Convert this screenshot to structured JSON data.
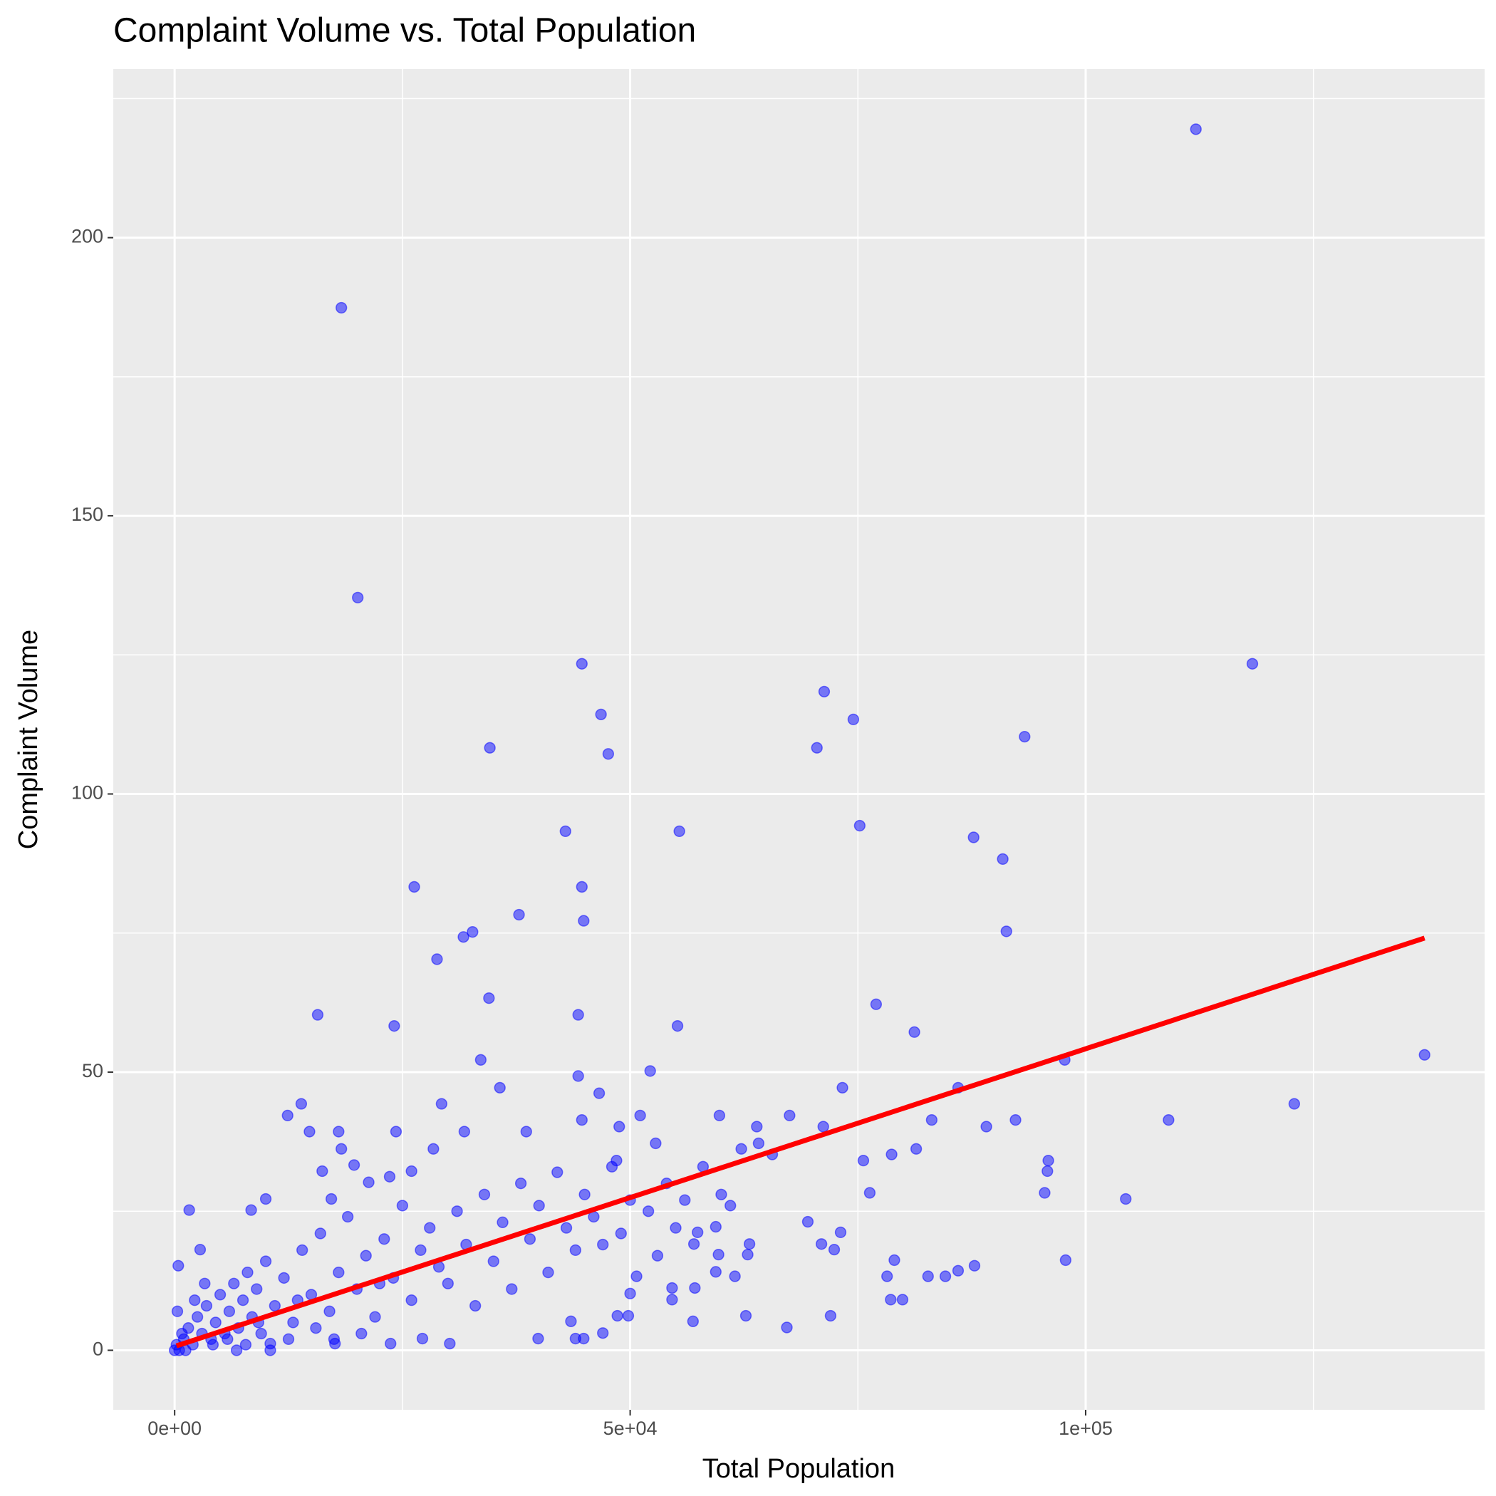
{
  "chart_data": {
    "type": "scatter",
    "title": "Complaint Volume vs. Total Population",
    "x_label": "Total Population",
    "y_label": "Complaint Volume",
    "color": "#0000ff",
    "opacity": 0.5,
    "x": [
      112100,
      18300,
      20100,
      44700,
      118300,
      71300,
      74500,
      46800,
      93300,
      34600,
      70500,
      47600,
      75200,
      42900,
      55400,
      87700,
      90900,
      26300,
      44700,
      37800,
      44900,
      32700,
      31700,
      91300,
      28800,
      34500,
      77000,
      15700,
      44300,
      24100,
      55200,
      81200,
      33600,
      97700,
      137200,
      52200,
      44300,
      86000,
      73300,
      46600,
      35700,
      13900,
      29300,
      122900,
      12400,
      51100,
      59800,
      67500,
      92300,
      83100,
      109100,
      44700,
      89100,
      71200,
      63900,
      48800,
      24300,
      14800,
      18000,
      31800,
      38600,
      64100,
      52800,
      81400,
      18300,
      28400,
      62200,
      95900,
      75600,
      48500,
      78700,
      65600,
      95800,
      16200,
      19700,
      104400,
      95500,
      76300,
      97800,
      79000,
      78200,
      82700,
      84600,
      86000,
      87800,
      78600,
      79900,
      72000,
      67200,
      62700,
      56900,
      69500,
      73100,
      72400,
      71000,
      63100,
      62900,
      59400,
      57400,
      57000,
      59700,
      61500,
      59400,
      54600,
      57100,
      54600,
      50700,
      50000,
      48600,
      49800,
      47000,
      44900,
      44000,
      39900,
      43500,
      30200,
      27200,
      23700,
      17600,
      10500,
      1600,
      2800,
      400,
      8400,
      10000,
      17200,
      21300,
      23600,
      26000,
      1000,
      1500,
      2000,
      2500,
      3000,
      3500,
      4000,
      4500,
      5000,
      5500,
      6000,
      6500,
      7000,
      7500,
      8000,
      8500,
      9000,
      9500,
      10000,
      11000,
      12000,
      13000,
      14000,
      15000,
      16000,
      17000,
      18000,
      19000,
      20000,
      21000,
      22000,
      23000,
      24000,
      25000,
      26000,
      27000,
      28000,
      29000,
      30000,
      31000,
      32000,
      33000,
      34000,
      35000,
      36000,
      37000,
      38000,
      39000,
      40000,
      41000,
      42000,
      43000,
      44000,
      45000,
      46000,
      47000,
      48000,
      49000,
      50000,
      52000,
      53000,
      54000,
      55000,
      56000,
      58000,
      60000,
      61000,
      0,
      200,
      500,
      800,
      1200,
      300,
      2200,
      3300,
      4200,
      5800,
      6800,
      7800,
      9200,
      10500,
      12500,
      13500,
      15500,
      17500,
      20500,
      22500
    ],
    "values": [
      219.5,
      187.4,
      135.3,
      123.4,
      123.4,
      118.4,
      113.4,
      114.3,
      110.3,
      108.3,
      108.3,
      107.2,
      94.3,
      93.3,
      93.3,
      92.2,
      88.3,
      83.3,
      83.3,
      78.3,
      77.2,
      75.2,
      74.3,
      75.3,
      70.3,
      63.3,
      62.2,
      60.3,
      60.3,
      58.3,
      58.3,
      57.2,
      52.2,
      52.2,
      53.1,
      50.2,
      49.3,
      47.2,
      47.2,
      46.2,
      47.2,
      44.3,
      44.3,
      44.3,
      42.2,
      42.2,
      42.2,
      42.2,
      41.4,
      41.4,
      41.4,
      41.4,
      40.2,
      40.2,
      40.2,
      40.2,
      39.3,
      39.3,
      39.3,
      39.3,
      39.3,
      37.2,
      37.2,
      36.2,
      36.2,
      36.2,
      36.2,
      34.1,
      34.1,
      34.1,
      35.2,
      35.2,
      32.2,
      32.2,
      33.3,
      27.2,
      28.3,
      28.3,
      16.2,
      16.2,
      13.3,
      13.3,
      13.3,
      14.3,
      15.2,
      9.1,
      9.1,
      6.2,
      4.1,
      6.2,
      5.2,
      23.1,
      21.2,
      18.1,
      19.1,
      19.1,
      17.2,
      22.2,
      21.2,
      19.1,
      17.2,
      13.3,
      14.1,
      11.2,
      11.2,
      9.1,
      13.3,
      10.2,
      6.2,
      6.2,
      3.1,
      2.1,
      2.1,
      2.1,
      5.2,
      1.2,
      2.1,
      1.2,
      1.2,
      1.2,
      25.2,
      18.1,
      15.2,
      25.2,
      27.2,
      27.2,
      30.2,
      31.2,
      32.2,
      2,
      4,
      1,
      6,
      3,
      8,
      2,
      5,
      10,
      3,
      7,
      12,
      4,
      9,
      14,
      6,
      11,
      3,
      16,
      8,
      13,
      5,
      18,
      10,
      21,
      7,
      14,
      24,
      11,
      17,
      6,
      20,
      13,
      26,
      9,
      18,
      22,
      15,
      12,
      25,
      19,
      8,
      28,
      16,
      23,
      11,
      30,
      20,
      26,
      14,
      32,
      22,
      18,
      28,
      24,
      19,
      33,
      21,
      27,
      25,
      17,
      30,
      22,
      27,
      33,
      28,
      26,
      0,
      1,
      0,
      3,
      0,
      7,
      9,
      12,
      1,
      2,
      0,
      1,
      5,
      0,
      2,
      9,
      4,
      2,
      3,
      12
    ],
    "trend_line": {
      "color": "#ff0000",
      "x": [
        200,
        137200
      ],
      "values": [
        0.8,
        74.1
      ]
    },
    "xlim": [
      -6737,
      143790
    ],
    "ylim": [
      -10.7,
      230.3
    ],
    "xticks": [
      {
        "value": 0,
        "label": "0e+00"
      },
      {
        "value": 50000,
        "label": "5e+04"
      },
      {
        "value": 100000,
        "label": "1e+05"
      }
    ],
    "yticks": [
      0,
      50,
      100,
      150,
      200
    ],
    "x_minor_grid": [
      25000,
      75000,
      125000
    ],
    "y_minor_grid": [
      25,
      75,
      125,
      175,
      225
    ],
    "grid": true
  }
}
